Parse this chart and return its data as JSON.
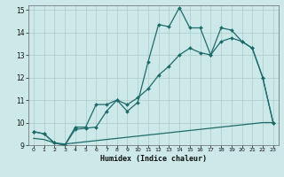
{
  "xlabel": "Humidex (Indice chaleur)",
  "xlim": [
    -0.5,
    23.5
  ],
  "ylim": [
    9,
    15.2
  ],
  "yticks": [
    9,
    10,
    11,
    12,
    13,
    14,
    15
  ],
  "xticks": [
    0,
    1,
    2,
    3,
    4,
    5,
    6,
    7,
    8,
    9,
    10,
    11,
    12,
    13,
    14,
    15,
    16,
    17,
    18,
    19,
    20,
    21,
    22,
    23
  ],
  "bg_color": "#cce8e8",
  "grid_color": "#aacccc",
  "line_color": "#1e6b6b",
  "series1_x": [
    0,
    1,
    2,
    3,
    4,
    5,
    6,
    7,
    8,
    9,
    10,
    11,
    12,
    13,
    14,
    15,
    16,
    17,
    18,
    19,
    20,
    21,
    22,
    23
  ],
  "series1_y": [
    9.6,
    9.5,
    9.1,
    9.0,
    9.8,
    9.8,
    10.8,
    10.8,
    11.0,
    10.5,
    10.9,
    12.7,
    14.35,
    14.25,
    15.1,
    14.2,
    14.2,
    13.0,
    14.2,
    14.1,
    13.6,
    13.3,
    12.0,
    10.0
  ],
  "series2_x": [
    0,
    1,
    2,
    3,
    4,
    5,
    6,
    7,
    8,
    9,
    10,
    11,
    12,
    13,
    14,
    15,
    16,
    17,
    18,
    19,
    20,
    21,
    22,
    23
  ],
  "series2_y": [
    9.6,
    9.5,
    9.1,
    9.0,
    9.7,
    9.75,
    9.8,
    10.5,
    11.0,
    10.8,
    11.1,
    11.5,
    12.1,
    12.5,
    13.0,
    13.3,
    13.1,
    13.0,
    13.6,
    13.75,
    13.6,
    13.3,
    12.0,
    10.0
  ],
  "series3_x": [
    0,
    1,
    2,
    3,
    4,
    5,
    6,
    7,
    8,
    9,
    10,
    11,
    12,
    13,
    14,
    15,
    16,
    17,
    18,
    19,
    20,
    21,
    22,
    23
  ],
  "series3_y": [
    9.3,
    9.25,
    9.1,
    9.05,
    9.1,
    9.15,
    9.2,
    9.25,
    9.3,
    9.35,
    9.4,
    9.45,
    9.5,
    9.55,
    9.6,
    9.65,
    9.7,
    9.75,
    9.8,
    9.85,
    9.9,
    9.95,
    10.0,
    10.0
  ]
}
